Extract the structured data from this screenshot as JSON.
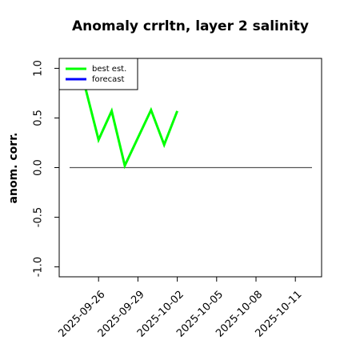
{
  "chart_data": {
    "type": "line",
    "title": "Anomaly crrltn, layer 2 salinity",
    "y_label": "anom. corr.",
    "x": [
      "2025-09-25",
      "2025-09-26",
      "2025-09-27",
      "2025-09-28",
      "2025-09-29",
      "2025-09-30",
      "2025-10-01",
      "2025-10-02"
    ],
    "series": [
      {
        "name": "best est.",
        "color": "#00ff00",
        "values": [
          0.8,
          0.28,
          0.57,
          0.02,
          0.3,
          0.58,
          0.23,
          0.57
        ]
      },
      {
        "name": "forecast",
        "color": "#0000ff",
        "values": [
          null,
          null,
          null,
          null,
          null,
          null,
          null,
          null
        ]
      }
    ],
    "xlim": [
      "2025-09-23",
      "2025-10-13"
    ],
    "xticks": [
      "2025-09-26",
      "2025-09-29",
      "2025-10-02",
      "2025-10-05",
      "2025-10-08",
      "2025-10-11"
    ],
    "xtick_colors": [
      "#000000",
      "#000000",
      "#228b22",
      "#000000",
      "#000000",
      "#000000"
    ],
    "ylim": [
      -1.1,
      1.1
    ],
    "yticks": [
      {
        "value": -1,
        "label": "-1.0"
      },
      -0.5,
      {
        "value": 0,
        "label": "0.0"
      },
      0.5,
      {
        "value": 1,
        "label": "1.0"
      }
    ],
    "reference_line": 0,
    "legend": "top-left"
  }
}
